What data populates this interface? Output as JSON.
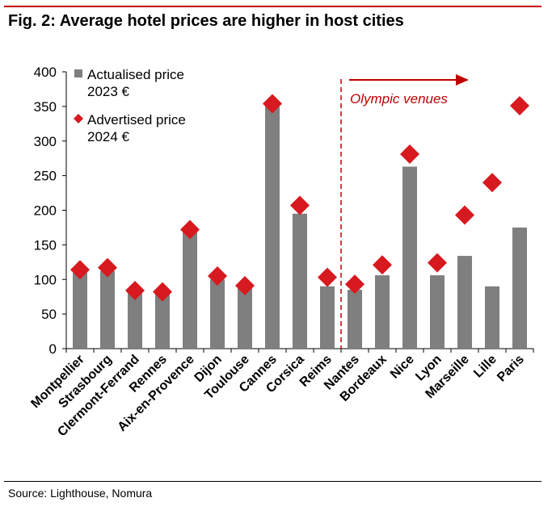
{
  "figure": {
    "title": "Fig. 2: Average hotel prices are higher in host cities",
    "source": "Source: Lighthouse, Nomura"
  },
  "chart_data": {
    "type": "bar",
    "categories": [
      "Montpellier",
      "Strasbourg",
      "Clermont-Ferrand",
      "Rennes",
      "Aix-en-Provence",
      "Dijon",
      "Toulouse",
      "Cannes",
      "Corsica",
      "Reims",
      "Nantes",
      "Bordeaux",
      "Nice",
      "Lyon",
      "Marseille",
      "Lille",
      "Paris"
    ],
    "series": [
      {
        "name": "Actualised price 2023 €",
        "label_lines": [
          "Actualised price",
          "2023 €"
        ],
        "mark": "bar",
        "color": "#7f7f7f",
        "values": [
          110,
          112,
          80,
          80,
          168,
          100,
          90,
          350,
          195,
          90,
          85,
          106,
          263,
          106,
          134,
          90,
          175
        ]
      },
      {
        "name": "Advertised price 2024 €",
        "label_lines": [
          "Advertised price",
          "2024 €"
        ],
        "mark": "diamond",
        "color": "#d71920",
        "values": [
          114,
          117,
          84,
          82,
          172,
          105,
          91,
          354,
          207,
          103,
          93,
          121,
          281,
          124,
          193,
          240,
          351
        ]
      }
    ],
    "yticks": [
      0,
      50,
      100,
      150,
      200,
      250,
      300,
      350,
      400
    ],
    "ylim": [
      0,
      400
    ],
    "grid": false,
    "legend": "top-left",
    "annotation": {
      "text": "Olympic venues",
      "divider_after_category": "Reims",
      "color": "#c00000"
    }
  }
}
